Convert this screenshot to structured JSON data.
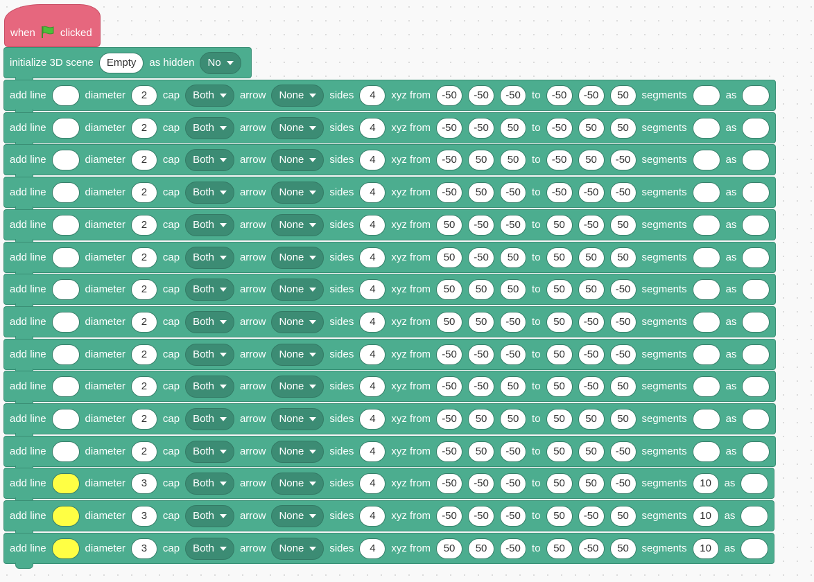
{
  "hat": {
    "when": "when",
    "flag_icon": "green-flag-icon",
    "clicked": "clicked"
  },
  "init": {
    "label": "initialize 3D scene",
    "scene": "Empty",
    "hidden_label": "as hidden",
    "hidden": "No"
  },
  "labels": {
    "add_line": "add line",
    "diameter": "diameter",
    "cap": "cap",
    "arrow": "arrow",
    "sides": "sides",
    "xyz_from": "xyz from",
    "to": "to",
    "segments": "segments",
    "as": "as"
  },
  "colors": {
    "block": "#4cad8f",
    "hat": "#e6677e",
    "white": "#ffffff",
    "yellow": "#ffff44"
  },
  "lines": [
    {
      "color": "white",
      "diameter": "2",
      "cap": "Both",
      "arrow": "None",
      "sides": "4",
      "from": [
        "-50",
        "-50",
        "-50"
      ],
      "to": [
        "-50",
        "-50",
        "50"
      ],
      "segments": "",
      "as": ""
    },
    {
      "color": "white",
      "diameter": "2",
      "cap": "Both",
      "arrow": "None",
      "sides": "4",
      "from": [
        "-50",
        "-50",
        "50"
      ],
      "to": [
        "-50",
        "50",
        "50"
      ],
      "segments": "",
      "as": ""
    },
    {
      "color": "white",
      "diameter": "2",
      "cap": "Both",
      "arrow": "None",
      "sides": "4",
      "from": [
        "-50",
        "50",
        "50"
      ],
      "to": [
        "-50",
        "50",
        "-50"
      ],
      "segments": "",
      "as": ""
    },
    {
      "color": "white",
      "diameter": "2",
      "cap": "Both",
      "arrow": "None",
      "sides": "4",
      "from": [
        "-50",
        "50",
        "-50"
      ],
      "to": [
        "-50",
        "-50",
        "-50"
      ],
      "segments": "",
      "as": ""
    },
    {
      "color": "white",
      "diameter": "2",
      "cap": "Both",
      "arrow": "None",
      "sides": "4",
      "from": [
        "50",
        "-50",
        "-50"
      ],
      "to": [
        "50",
        "-50",
        "50"
      ],
      "segments": "",
      "as": ""
    },
    {
      "color": "white",
      "diameter": "2",
      "cap": "Both",
      "arrow": "None",
      "sides": "4",
      "from": [
        "50",
        "-50",
        "50"
      ],
      "to": [
        "50",
        "50",
        "50"
      ],
      "segments": "",
      "as": ""
    },
    {
      "color": "white",
      "diameter": "2",
      "cap": "Both",
      "arrow": "None",
      "sides": "4",
      "from": [
        "50",
        "50",
        "50"
      ],
      "to": [
        "50",
        "50",
        "-50"
      ],
      "segments": "",
      "as": ""
    },
    {
      "color": "white",
      "diameter": "2",
      "cap": "Both",
      "arrow": "None",
      "sides": "4",
      "from": [
        "50",
        "50",
        "-50"
      ],
      "to": [
        "50",
        "-50",
        "-50"
      ],
      "segments": "",
      "as": ""
    },
    {
      "color": "white",
      "diameter": "2",
      "cap": "Both",
      "arrow": "None",
      "sides": "4",
      "from": [
        "-50",
        "-50",
        "-50"
      ],
      "to": [
        "50",
        "-50",
        "-50"
      ],
      "segments": "",
      "as": ""
    },
    {
      "color": "white",
      "diameter": "2",
      "cap": "Both",
      "arrow": "None",
      "sides": "4",
      "from": [
        "-50",
        "-50",
        "50"
      ],
      "to": [
        "50",
        "-50",
        "50"
      ],
      "segments": "",
      "as": ""
    },
    {
      "color": "white",
      "diameter": "2",
      "cap": "Both",
      "arrow": "None",
      "sides": "4",
      "from": [
        "-50",
        "50",
        "50"
      ],
      "to": [
        "50",
        "50",
        "50"
      ],
      "segments": "",
      "as": ""
    },
    {
      "color": "white",
      "diameter": "2",
      "cap": "Both",
      "arrow": "None",
      "sides": "4",
      "from": [
        "-50",
        "50",
        "-50"
      ],
      "to": [
        "50",
        "50",
        "-50"
      ],
      "segments": "",
      "as": ""
    },
    {
      "color": "yellow",
      "diameter": "3",
      "cap": "Both",
      "arrow": "None",
      "sides": "4",
      "from": [
        "-50",
        "-50",
        "-50"
      ],
      "to": [
        "50",
        "50",
        "-50"
      ],
      "segments": "10",
      "as": ""
    },
    {
      "color": "yellow",
      "diameter": "3",
      "cap": "Both",
      "arrow": "None",
      "sides": "4",
      "from": [
        "-50",
        "-50",
        "-50"
      ],
      "to": [
        "50",
        "-50",
        "50"
      ],
      "segments": "10",
      "as": ""
    },
    {
      "color": "yellow",
      "diameter": "3",
      "cap": "Both",
      "arrow": "None",
      "sides": "4",
      "from": [
        "50",
        "50",
        "-50"
      ],
      "to": [
        "50",
        "-50",
        "50"
      ],
      "segments": "10",
      "as": ""
    }
  ]
}
